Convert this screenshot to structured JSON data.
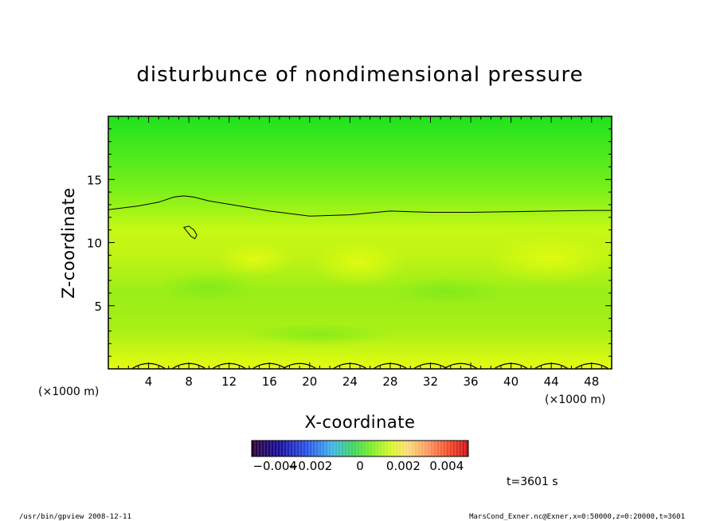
{
  "chart_data": {
    "type": "heatmap",
    "title": "disturbunce of nondimensional pressure",
    "xlabel": "X-coordinate",
    "ylabel": "Z-coordinate",
    "x_unit": "(×1000 m)",
    "x_unit_right": "(×1000 m)",
    "z_unit": "",
    "xlim": [
      0,
      50
    ],
    "ylim": [
      0,
      20
    ],
    "x_ticks": [
      4,
      8,
      12,
      16,
      20,
      24,
      28,
      32,
      36,
      40,
      44,
      48
    ],
    "y_ticks": [
      5,
      10,
      15
    ],
    "colorbar": {
      "min": -0.005,
      "max": 0.005,
      "tick_values": [
        -0.004,
        -0.002,
        0,
        0.002,
        0.004
      ],
      "tick_labels": [
        "-0.004",
        "-0.002",
        "0",
        "0.002",
        "0.004"
      ]
    },
    "field_level_range": [
      0.0004,
      0.0016
    ],
    "zero_contour": {
      "x": [
        0,
        3,
        5,
        6.5,
        7.5,
        8.5,
        10,
        13,
        16,
        20,
        24,
        28,
        32,
        36,
        40,
        44,
        48,
        50
      ],
      "z": [
        12.6,
        12.9,
        13.2,
        13.6,
        13.7,
        13.6,
        13.3,
        12.9,
        12.5,
        12.1,
        12.2,
        12.5,
        12.4,
        12.4,
        12.45,
        12.5,
        12.55,
        12.55
      ]
    },
    "closed_contour": {
      "x": [
        7.5,
        8,
        8.5,
        8.8,
        8.6,
        8.2,
        7.8,
        7.5
      ],
      "z": [
        11.2,
        11.3,
        11.0,
        10.6,
        10.3,
        10.5,
        10.9,
        11.2
      ]
    },
    "surface_contour_centers": [
      4,
      8,
      12,
      16,
      19,
      24,
      28,
      32,
      35,
      40,
      44,
      48
    ],
    "time_label": "t=3601 s"
  },
  "footer": {
    "left": "/usr/bin/gpview   2008-12-11",
    "right": "MarsCond_Exner.nc@Exner,x=0:50000,z=0:20000,t=3601"
  }
}
